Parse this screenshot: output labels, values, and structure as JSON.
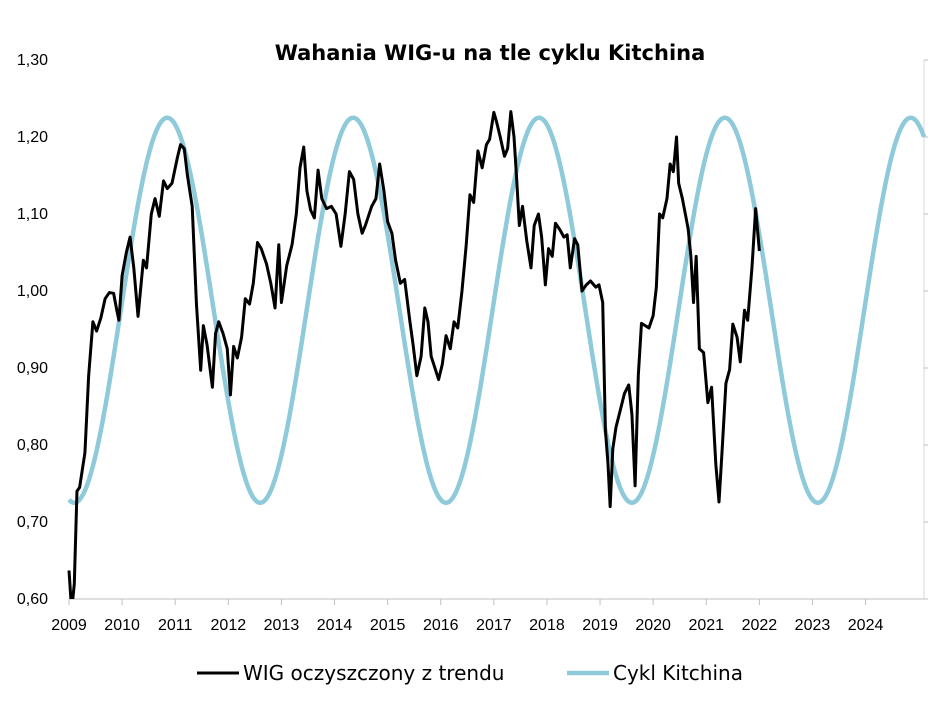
{
  "chart_data": {
    "type": "line",
    "title": "Wahania WIG-u na tle cyklu Kitchina",
    "xlabel": "",
    "ylabel": "",
    "xlim": [
      2009,
      2025.1
    ],
    "ylim": [
      0.6,
      1.3
    ],
    "x_ticks": [
      2009,
      2010,
      2011,
      2012,
      2013,
      2014,
      2015,
      2016,
      2017,
      2018,
      2019,
      2020,
      2021,
      2022,
      2023,
      2024
    ],
    "x_tick_labels": [
      "2009",
      "2010",
      "2011",
      "2012",
      "2013",
      "2014",
      "2015",
      "2016",
      "2017",
      "2018",
      "2019",
      "2020",
      "2021",
      "2022",
      "2023",
      "2024"
    ],
    "y_ticks": [
      0.6,
      0.7,
      0.8,
      0.9,
      1.0,
      1.1,
      1.2,
      1.3
    ],
    "y_tick_labels": [
      "0,60",
      "0,70",
      "0,80",
      "0,90",
      "1,00",
      "1,10",
      "1,20",
      "1,30"
    ],
    "grid": false,
    "legend_position": "bottom",
    "series": [
      {
        "name": "WIG oczyszczony z trendu",
        "color": "#000000",
        "points": [
          [
            2009.0,
            0.637
          ],
          [
            2009.05,
            0.585
          ],
          [
            2009.1,
            0.62
          ],
          [
            2009.15,
            0.74
          ],
          [
            2009.2,
            0.745
          ],
          [
            2009.3,
            0.79
          ],
          [
            2009.37,
            0.89
          ],
          [
            2009.45,
            0.96
          ],
          [
            2009.52,
            0.948
          ],
          [
            2009.6,
            0.965
          ],
          [
            2009.68,
            0.99
          ],
          [
            2009.76,
            0.998
          ],
          [
            2009.84,
            0.997
          ],
          [
            2009.9,
            0.975
          ],
          [
            2009.94,
            0.962
          ],
          [
            2010.0,
            1.02
          ],
          [
            2010.08,
            1.05
          ],
          [
            2010.15,
            1.07
          ],
          [
            2010.22,
            1.03
          ],
          [
            2010.3,
            0.967
          ],
          [
            2010.4,
            1.04
          ],
          [
            2010.46,
            1.03
          ],
          [
            2010.55,
            1.1
          ],
          [
            2010.62,
            1.12
          ],
          [
            2010.7,
            1.097
          ],
          [
            2010.78,
            1.143
          ],
          [
            2010.85,
            1.133
          ],
          [
            2010.94,
            1.14
          ],
          [
            2011.04,
            1.173
          ],
          [
            2011.1,
            1.19
          ],
          [
            2011.17,
            1.185
          ],
          [
            2011.23,
            1.15
          ],
          [
            2011.32,
            1.11
          ],
          [
            2011.4,
            0.983
          ],
          [
            2011.48,
            0.897
          ],
          [
            2011.53,
            0.955
          ],
          [
            2011.6,
            0.93
          ],
          [
            2011.7,
            0.875
          ],
          [
            2011.76,
            0.945
          ],
          [
            2011.82,
            0.96
          ],
          [
            2011.9,
            0.945
          ],
          [
            2011.98,
            0.925
          ],
          [
            2012.04,
            0.865
          ],
          [
            2012.1,
            0.928
          ],
          [
            2012.17,
            0.913
          ],
          [
            2012.25,
            0.94
          ],
          [
            2012.32,
            0.99
          ],
          [
            2012.4,
            0.983
          ],
          [
            2012.47,
            1.01
          ],
          [
            2012.55,
            1.063
          ],
          [
            2012.62,
            1.055
          ],
          [
            2012.72,
            1.035
          ],
          [
            2012.8,
            1.01
          ],
          [
            2012.88,
            0.978
          ],
          [
            2012.95,
            1.06
          ],
          [
            2013.0,
            0.985
          ],
          [
            2013.1,
            1.033
          ],
          [
            2013.2,
            1.06
          ],
          [
            2013.28,
            1.1
          ],
          [
            2013.35,
            1.16
          ],
          [
            2013.42,
            1.187
          ],
          [
            2013.48,
            1.13
          ],
          [
            2013.55,
            1.105
          ],
          [
            2013.62,
            1.095
          ],
          [
            2013.69,
            1.157
          ],
          [
            2013.76,
            1.12
          ],
          [
            2013.85,
            1.107
          ],
          [
            2013.94,
            1.11
          ],
          [
            2014.03,
            1.1
          ],
          [
            2014.12,
            1.058
          ],
          [
            2014.2,
            1.1
          ],
          [
            2014.28,
            1.155
          ],
          [
            2014.36,
            1.145
          ],
          [
            2014.44,
            1.1
          ],
          [
            2014.52,
            1.075
          ],
          [
            2014.58,
            1.085
          ],
          [
            2014.7,
            1.11
          ],
          [
            2014.78,
            1.12
          ],
          [
            2014.85,
            1.165
          ],
          [
            2014.93,
            1.13
          ],
          [
            2015.0,
            1.09
          ],
          [
            2015.08,
            1.075
          ],
          [
            2015.15,
            1.04
          ],
          [
            2015.24,
            1.01
          ],
          [
            2015.32,
            1.015
          ],
          [
            2015.42,
            0.96
          ],
          [
            2015.48,
            0.93
          ],
          [
            2015.55,
            0.89
          ],
          [
            2015.63,
            0.915
          ],
          [
            2015.7,
            0.978
          ],
          [
            2015.76,
            0.96
          ],
          [
            2015.82,
            0.915
          ],
          [
            2015.9,
            0.898
          ],
          [
            2015.96,
            0.885
          ],
          [
            2016.03,
            0.905
          ],
          [
            2016.1,
            0.942
          ],
          [
            2016.18,
            0.925
          ],
          [
            2016.25,
            0.96
          ],
          [
            2016.32,
            0.952
          ],
          [
            2016.4,
            1.0
          ],
          [
            2016.48,
            1.06
          ],
          [
            2016.55,
            1.125
          ],
          [
            2016.62,
            1.115
          ],
          [
            2016.7,
            1.182
          ],
          [
            2016.78,
            1.16
          ],
          [
            2016.86,
            1.19
          ],
          [
            2016.92,
            1.197
          ],
          [
            2017.0,
            1.232
          ],
          [
            2017.05,
            1.22
          ],
          [
            2017.12,
            1.2
          ],
          [
            2017.2,
            1.175
          ],
          [
            2017.26,
            1.185
          ],
          [
            2017.32,
            1.233
          ],
          [
            2017.38,
            1.2
          ],
          [
            2017.43,
            1.145
          ],
          [
            2017.48,
            1.085
          ],
          [
            2017.54,
            1.11
          ],
          [
            2017.62,
            1.065
          ],
          [
            2017.7,
            1.03
          ],
          [
            2017.76,
            1.085
          ],
          [
            2017.84,
            1.1
          ],
          [
            2017.9,
            1.07
          ],
          [
            2017.97,
            1.008
          ],
          [
            2018.03,
            1.055
          ],
          [
            2018.1,
            1.045
          ],
          [
            2018.16,
            1.088
          ],
          [
            2018.24,
            1.08
          ],
          [
            2018.32,
            1.07
          ],
          [
            2018.38,
            1.073
          ],
          [
            2018.44,
            1.03
          ],
          [
            2018.52,
            1.068
          ],
          [
            2018.58,
            1.06
          ],
          [
            2018.66,
            1.0
          ],
          [
            2018.74,
            1.008
          ],
          [
            2018.82,
            1.013
          ],
          [
            2018.92,
            1.005
          ],
          [
            2018.98,
            1.008
          ],
          [
            2019.05,
            0.985
          ],
          [
            2019.1,
            0.82
          ],
          [
            2019.15,
            0.775
          ],
          [
            2019.19,
            0.72
          ],
          [
            2019.24,
            0.795
          ],
          [
            2019.3,
            0.823
          ],
          [
            2019.38,
            0.845
          ],
          [
            2019.46,
            0.867
          ],
          [
            2019.54,
            0.878
          ],
          [
            2019.6,
            0.84
          ],
          [
            2019.66,
            0.747
          ],
          [
            2019.72,
            0.89
          ],
          [
            2019.78,
            0.958
          ],
          [
            2019.85,
            0.955
          ],
          [
            2019.92,
            0.952
          ],
          [
            2020.0,
            0.968
          ],
          [
            2020.06,
            1.005
          ],
          [
            2020.12,
            1.1
          ],
          [
            2020.18,
            1.095
          ],
          [
            2020.26,
            1.12
          ],
          [
            2020.32,
            1.165
          ],
          [
            2020.38,
            1.155
          ],
          [
            2020.44,
            1.2
          ],
          [
            2020.48,
            1.14
          ],
          [
            2020.55,
            1.12
          ],
          [
            2020.62,
            1.095
          ],
          [
            2020.66,
            1.08
          ],
          [
            2020.71,
            1.045
          ],
          [
            2020.76,
            0.985
          ],
          [
            2020.81,
            1.045
          ],
          [
            2020.87,
            0.925
          ],
          [
            2020.95,
            0.92
          ],
          [
            2021.03,
            0.855
          ],
          [
            2021.1,
            0.875
          ],
          [
            2021.18,
            0.775
          ],
          [
            2021.24,
            0.726
          ],
          [
            2021.3,
            0.795
          ],
          [
            2021.37,
            0.88
          ],
          [
            2021.44,
            0.898
          ],
          [
            2021.5,
            0.957
          ],
          [
            2021.58,
            0.94
          ],
          [
            2021.64,
            0.908
          ],
          [
            2021.72,
            0.975
          ],
          [
            2021.78,
            0.962
          ],
          [
            2021.86,
            1.03
          ],
          [
            2021.93,
            1.107
          ],
          [
            2022.0,
            1.052
          ]
        ]
      },
      {
        "name": "Cykl Kitchina",
        "color": "#8ECADA",
        "sine": {
          "center": 0.975,
          "amplitude": 0.25,
          "period_years": 3.5,
          "peak_year": 2010.85
        }
      }
    ]
  }
}
